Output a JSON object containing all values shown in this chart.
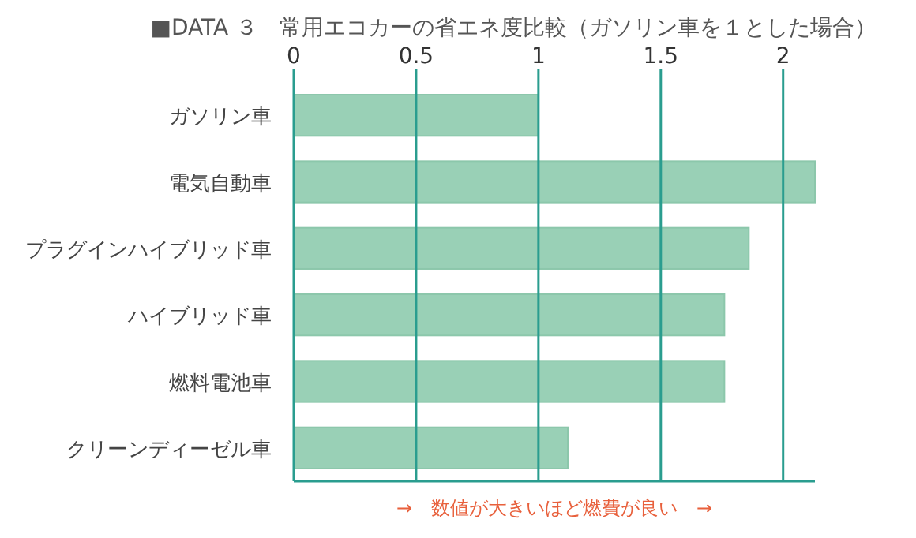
{
  "chart_data": {
    "type": "bar",
    "orientation": "horizontal",
    "title": "■DATA ３　常用エコカーの省エネ度比較（ガソリン車を１とした場合）",
    "categories": [
      "ガソリン車",
      "電気自動車",
      "プラグインハイブリッド車",
      "ハイブリッド車",
      "燃料電池車",
      "クリーンディーゼル車"
    ],
    "values": [
      1,
      2.13,
      1.86,
      1.76,
      1.76,
      1.12
    ],
    "color": "#99d0b6",
    "xlim": [
      0,
      2.13
    ],
    "xticks": [
      0,
      0.5,
      1,
      1.5,
      2
    ],
    "grid": "x",
    "annotations": [
      "→　数値が大きいほど燃費が良い　→"
    ]
  }
}
